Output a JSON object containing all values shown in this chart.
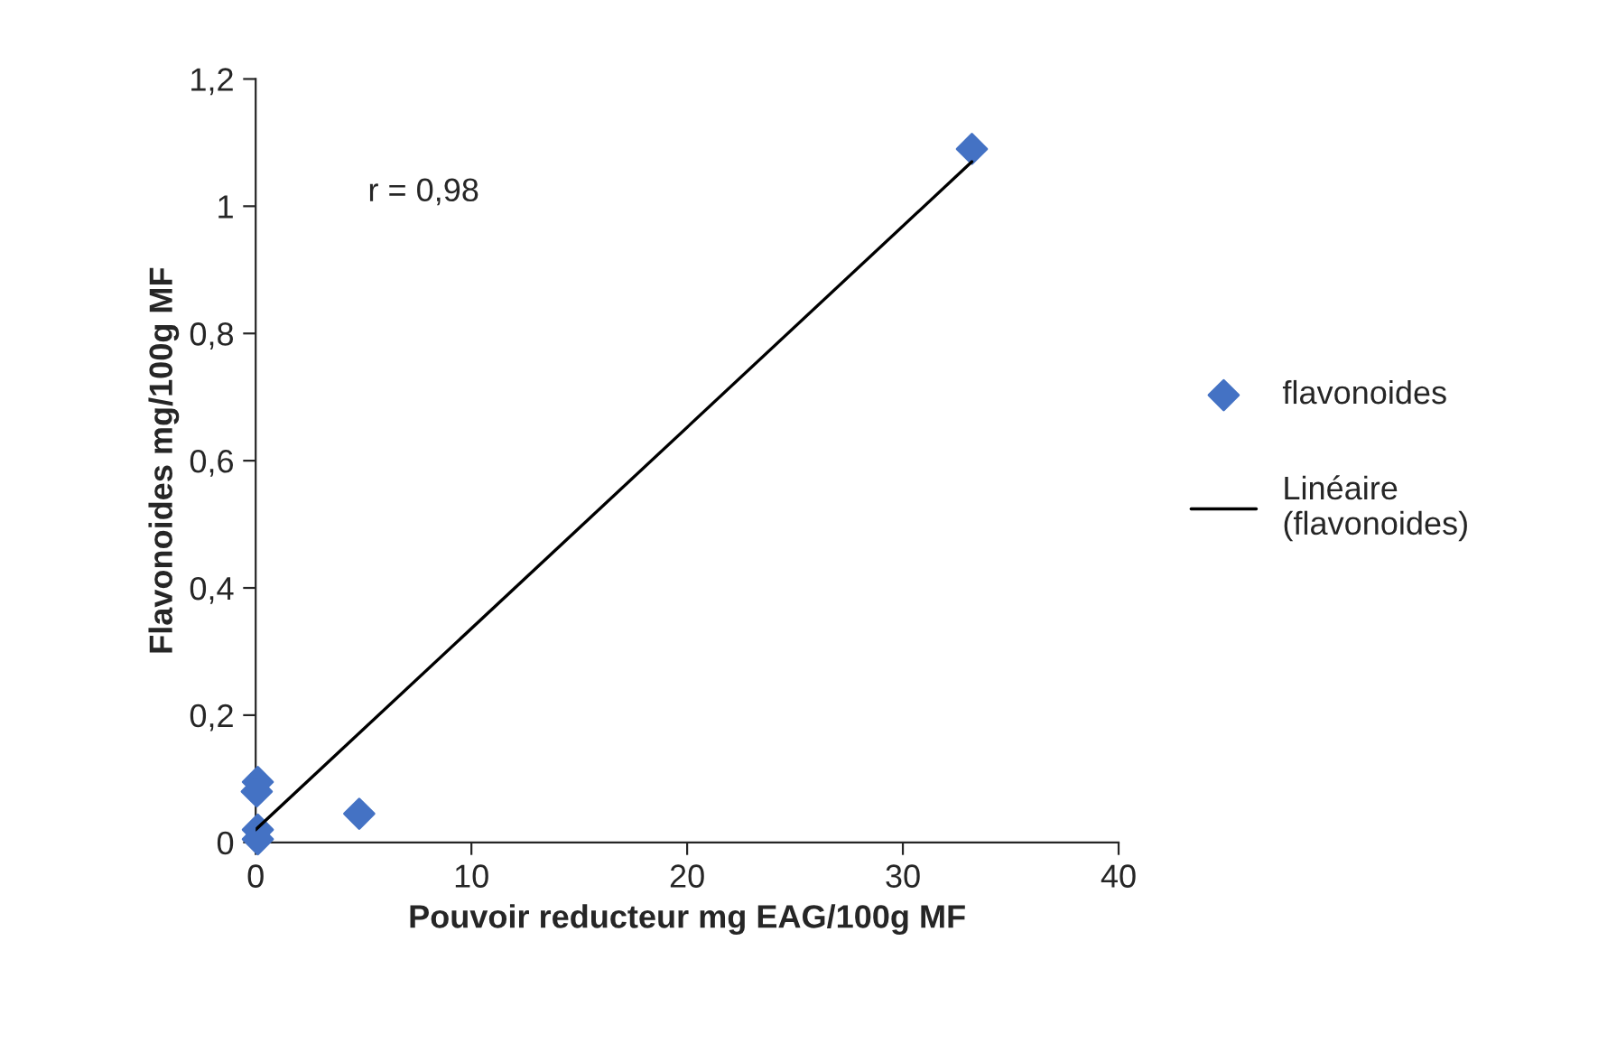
{
  "chart_data": {
    "type": "scatter",
    "xlabel": "Pouvoir reducteur mg EAG/100g MF",
    "ylabel": "Flavonoides mg/100g MF",
    "series": [
      {
        "name": "flavonoides",
        "color": "#4472c4",
        "marker": "diamond",
        "x": [
          33.2,
          4.8,
          0.1,
          0.05,
          0.1,
          0.1
        ],
        "values": [
          1.09,
          0.045,
          0.095,
          0.08,
          0.02,
          0.005
        ]
      },
      {
        "name": "Linéaire (flavonoides)",
        "type": "line",
        "color": "#000000",
        "marker": "none",
        "x": [
          0,
          33.2
        ],
        "values": [
          0.02,
          1.07
        ]
      }
    ],
    "annotations": [
      "r = 0,98"
    ],
    "xlim": [
      0,
      40
    ],
    "xticks": [
      0,
      10,
      20,
      30,
      40
    ],
    "ylim": [
      0,
      1.2
    ],
    "yticks": [
      0,
      {
        "value": 0.2,
        "label": "0,2"
      },
      {
        "value": 0.4,
        "label": "0,4"
      },
      {
        "value": 0.6,
        "label": "0,6"
      },
      {
        "value": 0.8,
        "label": "0,8"
      },
      1,
      {
        "value": 1.2,
        "label": "1,2"
      }
    ],
    "grid": false,
    "legend": "right"
  }
}
